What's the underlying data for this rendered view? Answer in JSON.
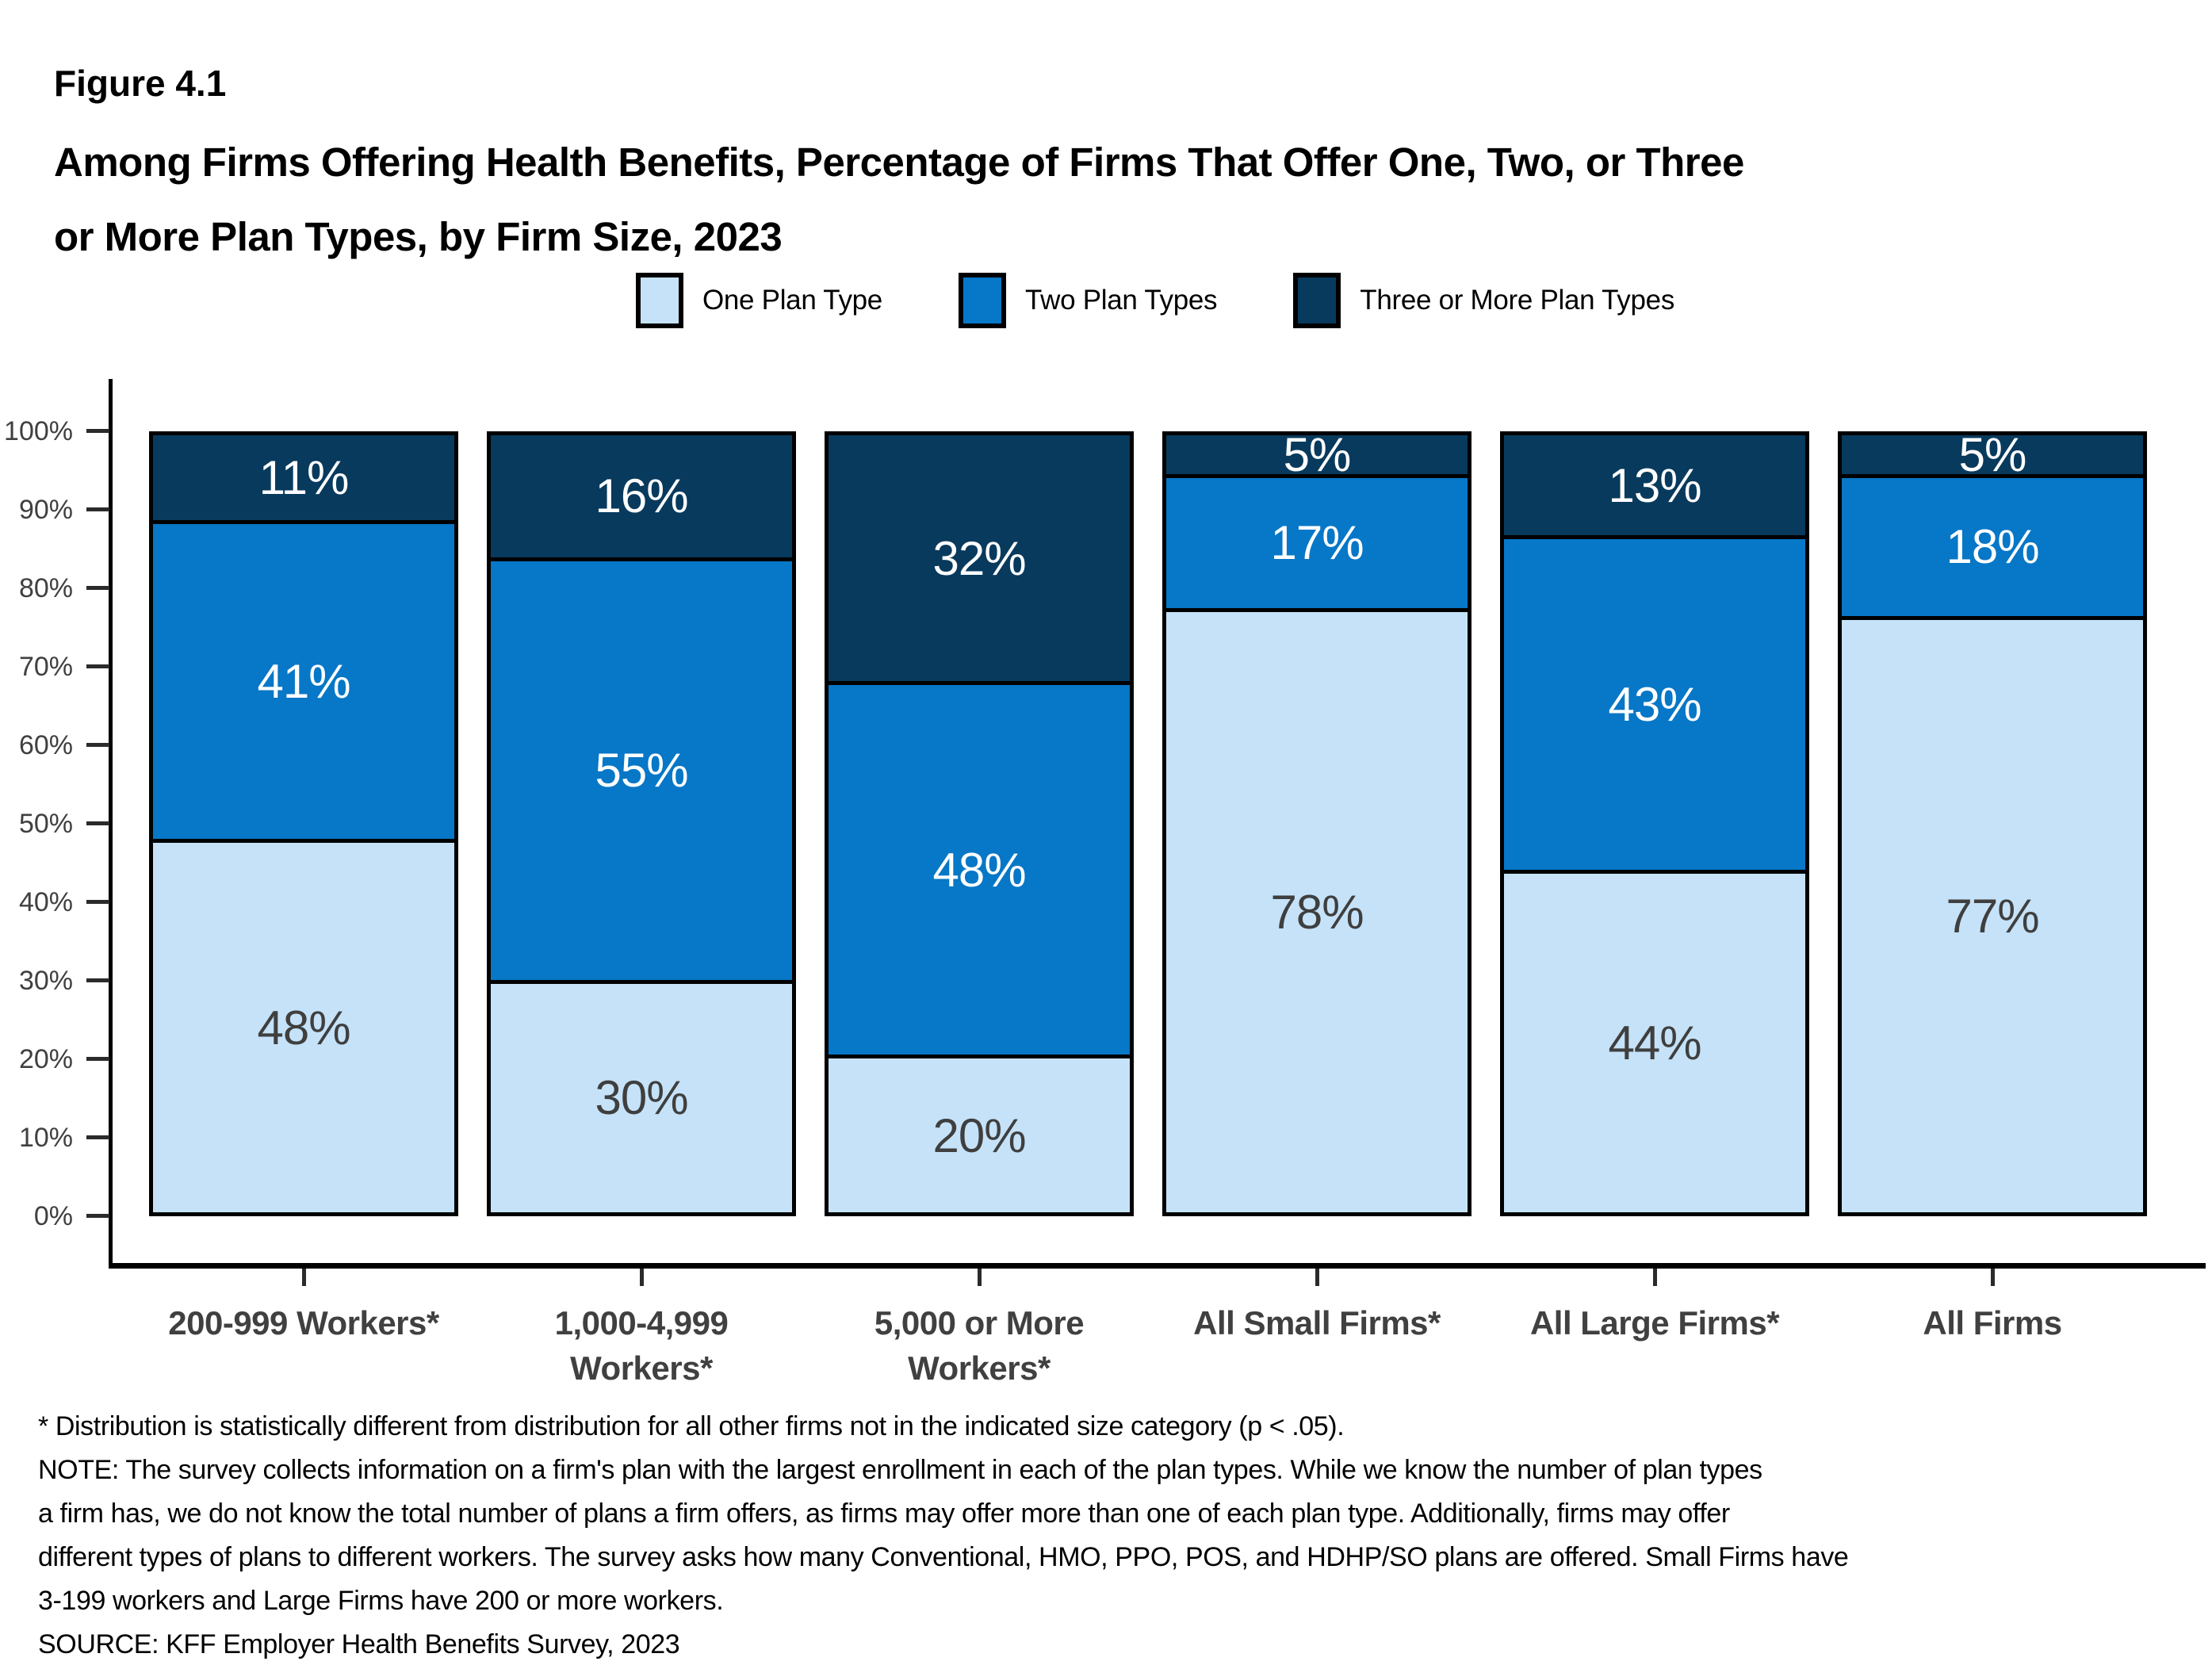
{
  "figure_label": "Figure 4.1",
  "title": "Among Firms Offering Health Benefits, Percentage of Firms That Offer One, Two, or Three\nor More Plan Types, by Firm Size, 2023",
  "colors": {
    "one_plan": "#C5E2F8",
    "two_plans": "#0777C7",
    "three_plans": "#083A5D",
    "axis_text": "#404040",
    "light_segment_label": "#3F3F3F",
    "dark_segment_label": "#FFFFFF"
  },
  "chart_data": {
    "type": "bar",
    "stacked": true,
    "title": "Among Firms Offering Health Benefits, Percentage of Firms That Offer One, Two, or Three or More Plan Types, by Firm Size, 2023",
    "categories": [
      "200-999 Workers*",
      "1,000-4,999\nWorkers*",
      "5,000 or More\nWorkers*",
      "All Small Firms*",
      "All Large Firms*",
      "All Firms"
    ],
    "series": [
      {
        "name": "One Plan Type",
        "color": "#C5E2F8",
        "label_color": "#3F3F3F",
        "values": [
          48,
          30,
          20,
          78,
          44,
          77
        ]
      },
      {
        "name": "Two Plan Types",
        "color": "#0777C7",
        "label_color": "#FFFFFF",
        "values": [
          41,
          55,
          48,
          17,
          43,
          18
        ]
      },
      {
        "name": "Three or More Plan Types",
        "color": "#083A5D",
        "label_color": "#FFFFFF",
        "values": [
          11,
          16,
          32,
          5,
          13,
          5
        ]
      }
    ],
    "y_ticks": [
      "0%",
      "10%",
      "20%",
      "30%",
      "40%",
      "50%",
      "60%",
      "70%",
      "80%",
      "90%",
      "100%"
    ],
    "ylim": [
      0,
      100
    ],
    "value_suffix": "%",
    "grid": false,
    "legend_position": "top"
  },
  "footnotes": [
    "* Distribution is statistically different from distribution for all other firms not in the indicated size category (p < .05).",
    "NOTE: The survey collects information on a firm's plan with the largest enrollment in each of the plan types. While we know the number of plan types",
    "a firm has, we do not know the total number of plans a firm offers, as firms may offer more than one of each plan type. Additionally, firms may offer",
    "different types of plans to different workers. The survey asks how many Conventional, HMO, PPO, POS, and HDHP/SO plans are offered. Small Firms have",
    "3-199 workers and Large Firms have 200 or more workers.",
    "SOURCE: KFF Employer Health Benefits Survey, 2023"
  ]
}
